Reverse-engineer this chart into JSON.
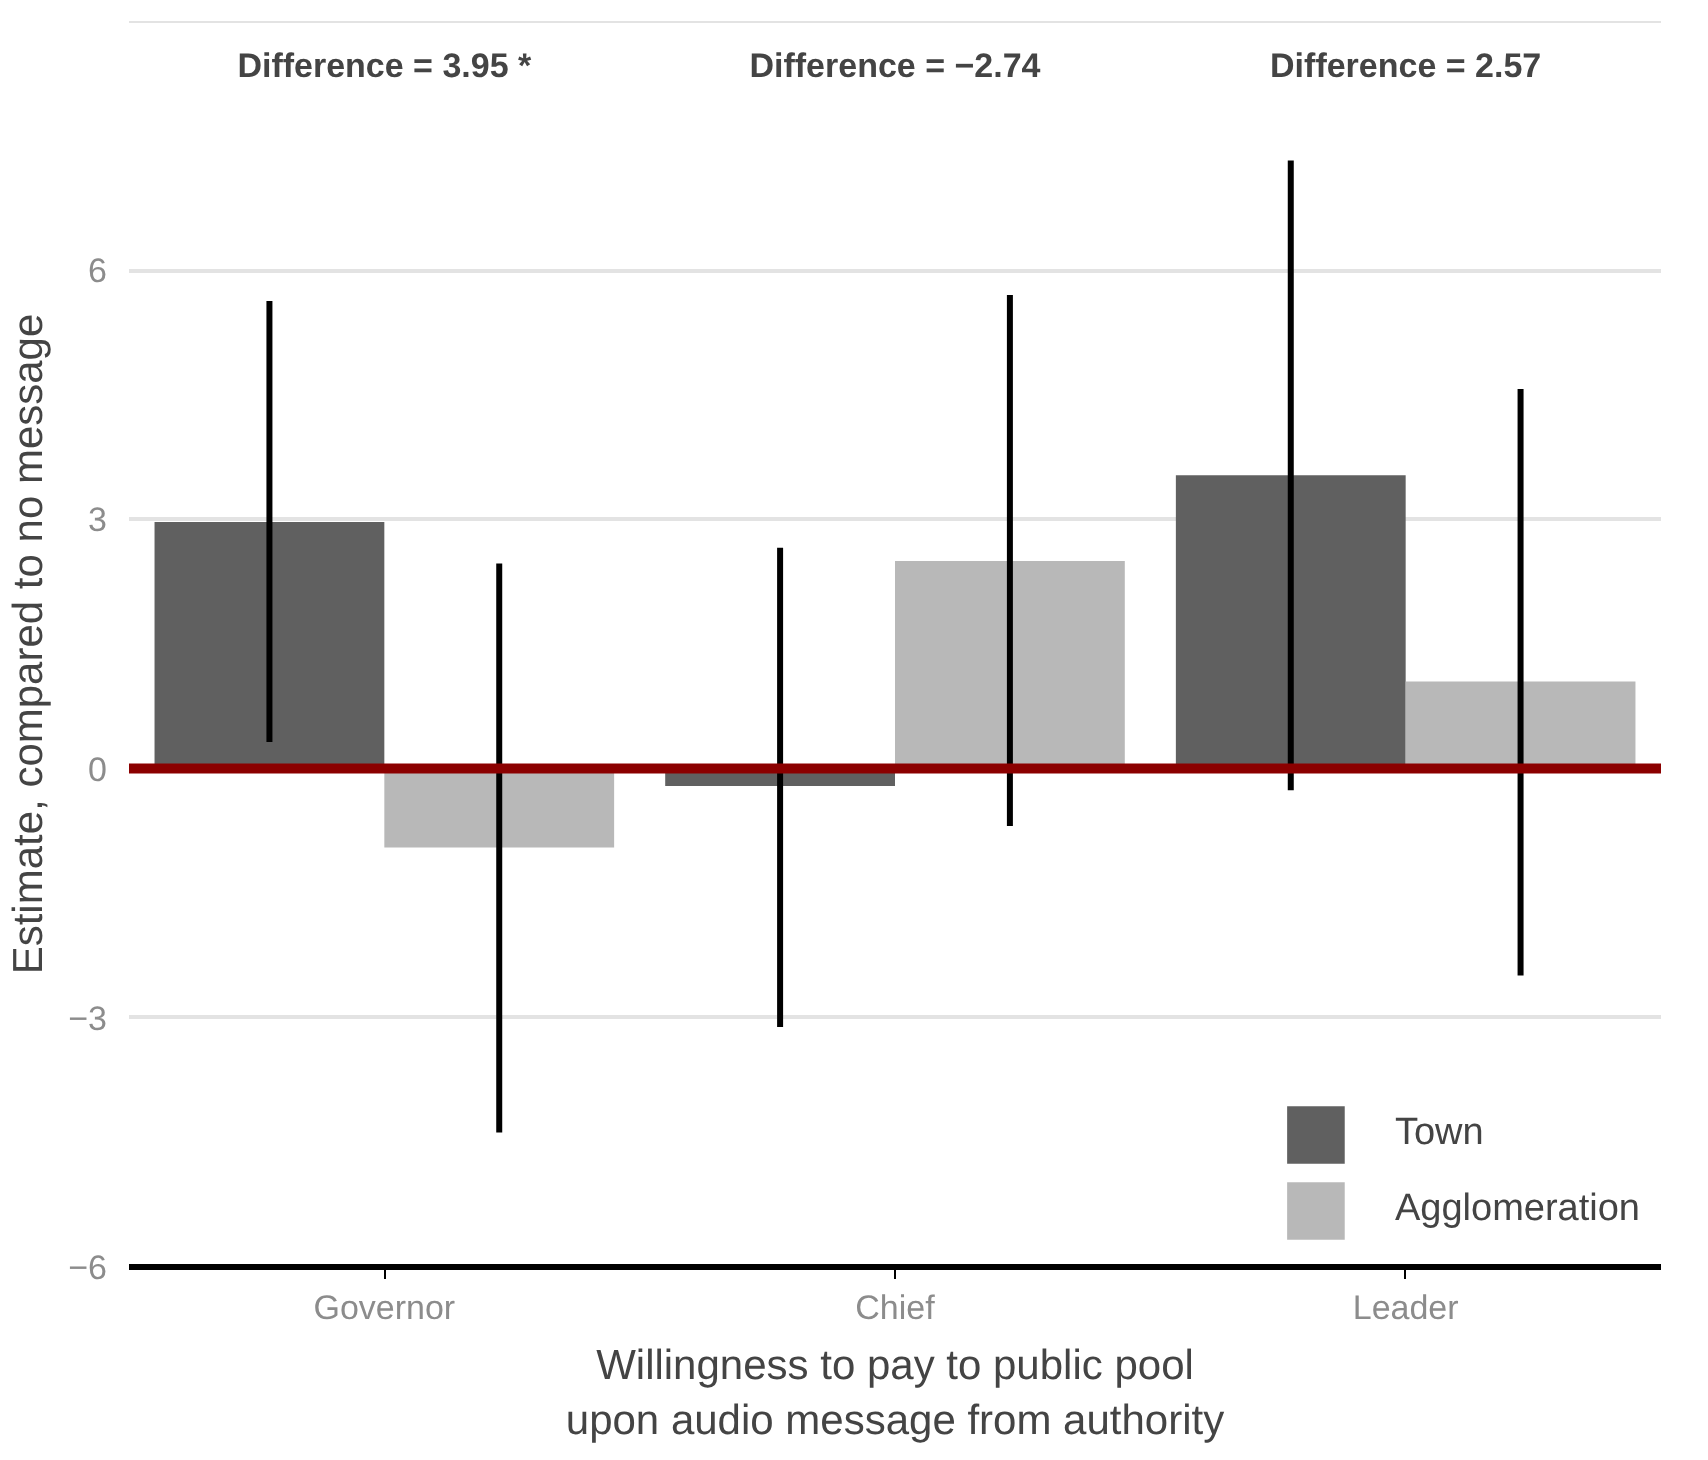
{
  "chart_data": {
    "type": "bar",
    "xlabel": "Willingness to pay to public pool\nupon audio message from authority",
    "ylabel": "Estimate, compared to no message",
    "categories": [
      "Governor",
      "Chief",
      "Leader"
    ],
    "series": [
      {
        "name": "Town",
        "color": "#606060",
        "values": [
          2.97,
          -0.21,
          3.53
        ],
        "errors": [
          [
            0.32,
            5.63
          ],
          [
            -3.11,
            2.66
          ],
          [
            -0.26,
            7.32
          ]
        ]
      },
      {
        "name": "Agglomeration",
        "color": "#b8b8b8",
        "values": [
          -0.95,
          2.5,
          1.05
        ],
        "errors": [
          [
            -4.38,
            2.47
          ],
          [
            -0.69,
            5.7
          ],
          [
            -2.49,
            4.57
          ]
        ]
      }
    ],
    "ylim": [
      -6,
      9
    ],
    "yticks": [
      {
        "value": -6,
        "label": "−6"
      },
      {
        "value": -3,
        "label": "−3"
      },
      0,
      3,
      6,
      {
        "value": 9,
        "label": null
      }
    ],
    "ref_lines": [
      {
        "axis": "y",
        "value": 0,
        "color": "#8b0000"
      }
    ],
    "annotations": [
      "Difference = 3.95 *",
      "Difference = −2.74",
      "Difference = 2.57"
    ],
    "grid": "y",
    "legend": "bottom right"
  }
}
